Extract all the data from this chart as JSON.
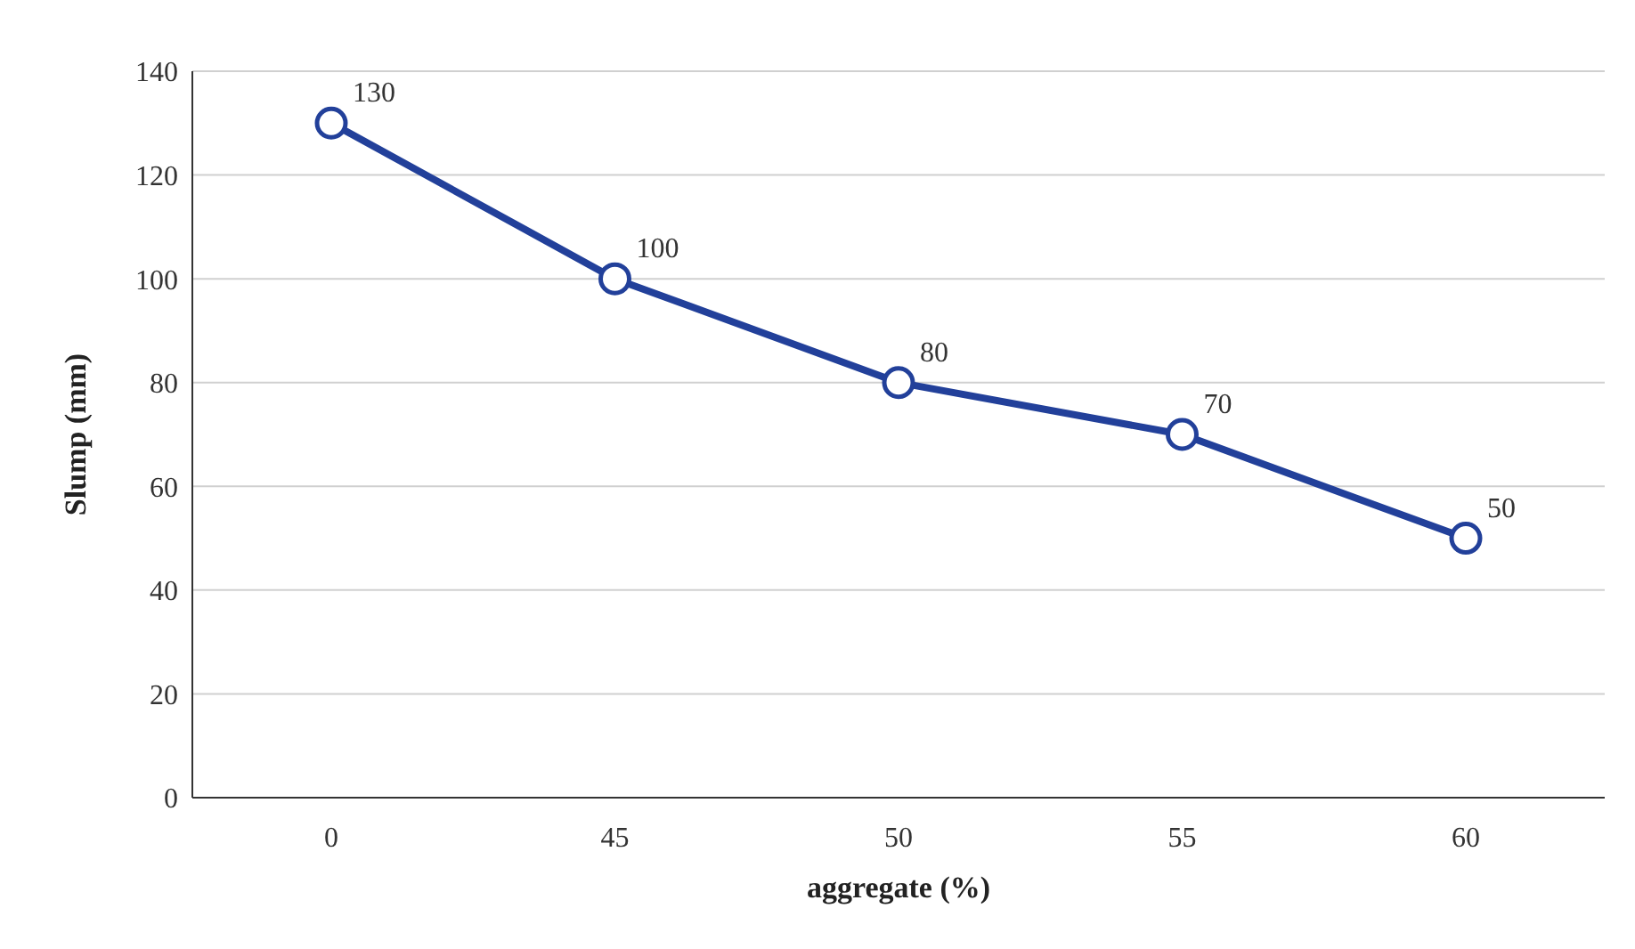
{
  "chart_data": {
    "type": "line",
    "xlabel": "aggregate (%)",
    "ylabel": "Slump (mm)",
    "categories": [
      "0",
      "45",
      "50",
      "55",
      "60"
    ],
    "series": [
      {
        "color": "#22409a",
        "values": [
          130,
          100,
          80,
          70,
          50
        ]
      }
    ],
    "ylim": [
      0,
      140
    ],
    "yticks": [
      0,
      20,
      40,
      60,
      80,
      100,
      120,
      140
    ],
    "grid": "y",
    "marker": "circle",
    "line_style": "solid",
    "data_labels": true
  }
}
